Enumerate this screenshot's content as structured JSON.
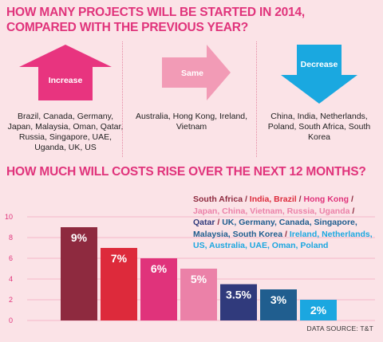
{
  "colors": {
    "accent": "#e0337b",
    "increase": "#e8347f",
    "same": "#f29bb6",
    "decrease": "#1aa8e0"
  },
  "projects": {
    "title_line1": "HOW MANY PROJECTS WILL BE STARTED IN 2014,",
    "title_line2": "COMPARED WITH THE PREVIOUS YEAR?",
    "increase": {
      "label": "Increase",
      "icon": "up-arrow-icon",
      "countries": "Brazil, Canada, Germany, Japan, Malaysia, Oman, Qatar, Russia, Singapore, UAE, Uganda, UK, US"
    },
    "same": {
      "label": "Same",
      "icon": "right-arrow-icon",
      "countries": "Australia, Hong Kong, Ireland, Vietnam"
    },
    "decrease": {
      "label": "Decrease",
      "icon": "down-arrow-icon",
      "countries": "China, India, Netherlands, Poland, South Africa, South Korea"
    }
  },
  "costs": {
    "title": "HOW MUCH WILL COSTS RISE OVER THE NEXT 12 MONTHS?",
    "legend": [
      {
        "text": "South Africa",
        "color": "#8e2a3f"
      },
      {
        "text": " / ",
        "color": "#8e2a3f"
      },
      {
        "text": "India, Brazil",
        "color": "#dd2a3b"
      },
      {
        "text": " / ",
        "color": "#8e2a3f"
      },
      {
        "text": "Hong Kong",
        "color": "#e0337b"
      },
      {
        "text": " / ",
        "color": "#8e2a3f"
      },
      {
        "text": "Japan, China, Vietnam, Russia, Uganda",
        "color": "#eb81a8"
      },
      {
        "text": " / ",
        "color": "#8e2a3f"
      },
      {
        "text": "Qatar",
        "color": "#303a7c"
      },
      {
        "text": " / ",
        "color": "#8e2a3f"
      },
      {
        "text": "UK, Germany, Canada, Singapore, Malaysia, South Korea",
        "color": "#205e8f"
      },
      {
        "text": " / ",
        "color": "#8e2a3f"
      },
      {
        "text": "Ireland, Netherlands, US, Australia, UAE, Oman, Poland",
        "color": "#1ba7e0"
      }
    ],
    "source": "DATA SOURCE: T&T"
  },
  "chart_data": {
    "type": "bar",
    "title": "HOW MUCH WILL COSTS RISE OVER THE NEXT 12 MONTHS?",
    "categories": [
      "South Africa",
      "India, Brazil",
      "Hong Kong",
      "Japan, China, Vietnam, Russia, Uganda",
      "Qatar",
      "UK, Germany, Canada, Singapore, Malaysia, South Korea",
      "Ireland, Netherlands, US, Australia, UAE, Oman, Poland"
    ],
    "values": [
      9,
      7,
      6,
      5,
      3.5,
      3,
      2
    ],
    "data_labels": [
      "9%",
      "7%",
      "6%",
      "5%",
      "3.5%",
      "3%",
      "2%"
    ],
    "colors": [
      "#8e2a3f",
      "#dd2a3b",
      "#e0337b",
      "#eb81a8",
      "#303a7c",
      "#205e8f",
      "#1ba7e0"
    ],
    "ylim": [
      0,
      10
    ],
    "yticks": [
      0,
      2,
      4,
      6,
      8,
      10
    ],
    "grid": true,
    "xlabel": "",
    "ylabel": ""
  }
}
